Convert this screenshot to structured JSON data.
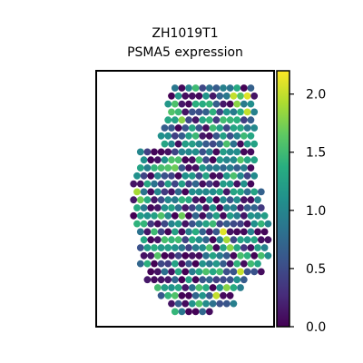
{
  "chart_data": {
    "type": "scatter",
    "subtype": "spatial-hex-spots",
    "title": {
      "line1": "ZH1019T1",
      "line2": "PSMA5 expression"
    },
    "xlabel": "",
    "ylabel": "",
    "axes_ticks": false,
    "grid": false,
    "colormap": "viridis",
    "colorbar": {
      "range": [
        0,
        2.2
      ],
      "ticks": [
        0.0,
        0.5,
        1.0,
        1.5,
        2.0
      ],
      "tick_labels": [
        "0.0",
        "0.5",
        "1.0",
        "1.5",
        "2.0"
      ]
    },
    "tissue_outline_rows": [
      {
        "r": 0,
        "from": 3,
        "to": 14
      },
      {
        "r": 1,
        "from": 2,
        "to": 14
      },
      {
        "r": 2,
        "from": 2,
        "to": 14
      },
      {
        "r": 3,
        "from": 2,
        "to": 14
      },
      {
        "r": 4,
        "from": 2,
        "to": 14
      },
      {
        "r": 5,
        "from": 1,
        "to": 14
      },
      {
        "r": 6,
        "from": 1,
        "to": 14
      },
      {
        "r": 7,
        "from": 1,
        "to": 14
      },
      {
        "r": 8,
        "from": -2,
        "to": 14
      },
      {
        "r": 9,
        "from": -2,
        "to": 14
      },
      {
        "r": 10,
        "from": -2,
        "to": 14
      },
      {
        "r": 11,
        "from": -3,
        "to": 14
      },
      {
        "r": 12,
        "from": -3,
        "to": 14
      },
      {
        "r": 13,
        "from": -3,
        "to": 15
      },
      {
        "r": 14,
        "from": -3,
        "to": 15
      },
      {
        "r": 15,
        "from": -3,
        "to": 15
      },
      {
        "r": 16,
        "from": -3,
        "to": 16
      },
      {
        "r": 17,
        "from": -3,
        "to": 16
      },
      {
        "r": 18,
        "from": -2,
        "to": 16
      },
      {
        "r": 19,
        "from": -2,
        "to": 16
      },
      {
        "r": 20,
        "from": -2,
        "to": 16
      },
      {
        "r": 21,
        "from": -2,
        "to": 16
      },
      {
        "r": 22,
        "from": -2,
        "to": 15
      },
      {
        "r": 23,
        "from": -1,
        "to": 15
      },
      {
        "r": 24,
        "from": -1,
        "to": 13
      },
      {
        "r": 25,
        "from": 0,
        "to": 12
      },
      {
        "r": 26,
        "from": 1,
        "to": 11
      },
      {
        "r": 27,
        "from": 2,
        "to": 11
      },
      {
        "r": 28,
        "from": 3,
        "to": 8
      }
    ],
    "bright_spots": [
      {
        "r": 1,
        "c": 13,
        "value": 2.1
      },
      {
        "r": 1,
        "c": 11,
        "value": 2.0
      },
      {
        "r": 2,
        "c": 12,
        "value": 1.8
      },
      {
        "r": 3,
        "c": 13,
        "value": 2.0
      },
      {
        "r": 4,
        "c": 4,
        "value": 1.8
      },
      {
        "r": 13,
        "c": -3,
        "value": 1.9
      },
      {
        "r": 14,
        "c": -2,
        "value": 1.7
      },
      {
        "r": 18,
        "c": 10,
        "value": 2.1
      },
      {
        "r": 19,
        "c": 10,
        "value": 1.9
      },
      {
        "r": 20,
        "c": 11,
        "value": 1.8
      },
      {
        "r": 23,
        "c": 12,
        "value": 2.0
      },
      {
        "r": 26,
        "c": 9,
        "value": 2.0
      },
      {
        "r": 25,
        "c": 10,
        "value": 1.8
      },
      {
        "r": 10,
        "c": 3,
        "value": 1.7
      },
      {
        "r": 16,
        "c": 4,
        "value": 1.7
      }
    ]
  }
}
